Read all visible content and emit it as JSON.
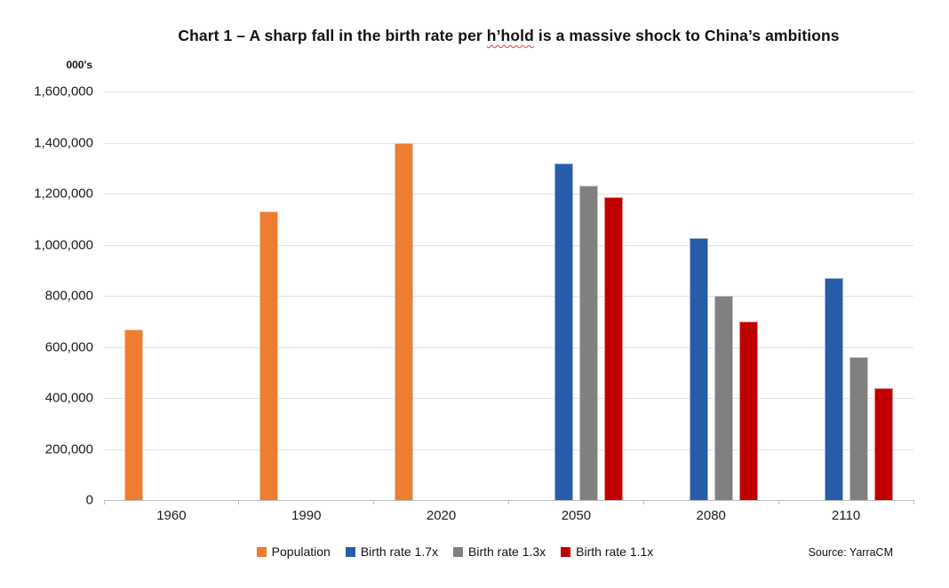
{
  "title": {
    "pre": "Chart 1 – A sharp fall in the birth rate per ",
    "spellcheck_word": "h’hold",
    "post": " is a massive shock to China’s ambitions"
  },
  "y_axis": {
    "unit_label": "000's",
    "tick_labels": [
      "1,600,000",
      "1,400,000",
      "1,200,000",
      "1,000,000",
      "800,000",
      "600,000",
      "400,000",
      "200,000",
      "0"
    ],
    "max": 1600000,
    "min": 0,
    "step": 200000
  },
  "x_axis": {
    "categories": [
      "1960",
      "1990",
      "2020",
      "2050",
      "2080",
      "2110"
    ]
  },
  "legend": {
    "items": [
      {
        "label": "Population",
        "color": "#ED7D31"
      },
      {
        "label": "Birth rate 1.7x",
        "color": "#265CA9"
      },
      {
        "label": "Birth rate 1.3x",
        "color": "#808080"
      },
      {
        "label": "Birth rate 1.1x",
        "color": "#C00000"
      }
    ]
  },
  "source": "Source: YarraCM",
  "colors": {
    "gridline": "#E2E2E2",
    "axis_line": "#BFBFBF",
    "title_text": "#111111",
    "spellcheck_underline": "#E03C31"
  },
  "chart_data": {
    "type": "bar",
    "title": "Chart 1 – A sharp fall in the birth rate per h’hold is a massive shock to China’s ambitions",
    "unit": "000's",
    "categories": [
      "1960",
      "1990",
      "2020",
      "2050",
      "2080",
      "2110"
    ],
    "series": [
      {
        "name": "Population",
        "color": "#ED7D31",
        "values": [
          667000,
          1130000,
          1400000,
          null,
          null,
          null
        ]
      },
      {
        "name": "Birth rate 1.7x",
        "color": "#265CA9",
        "values": [
          null,
          null,
          null,
          1320000,
          1025000,
          870000
        ]
      },
      {
        "name": "Birth rate 1.3x",
        "color": "#808080",
        "values": [
          null,
          null,
          null,
          1230000,
          800000,
          560000
        ]
      },
      {
        "name": "Birth rate 1.1x",
        "color": "#C00000",
        "values": [
          null,
          null,
          null,
          1185000,
          700000,
          440000
        ]
      }
    ],
    "ylim": [
      0,
      1600000
    ],
    "grid": true,
    "legend_position": "bottom",
    "source": "Source: YarraCM"
  }
}
